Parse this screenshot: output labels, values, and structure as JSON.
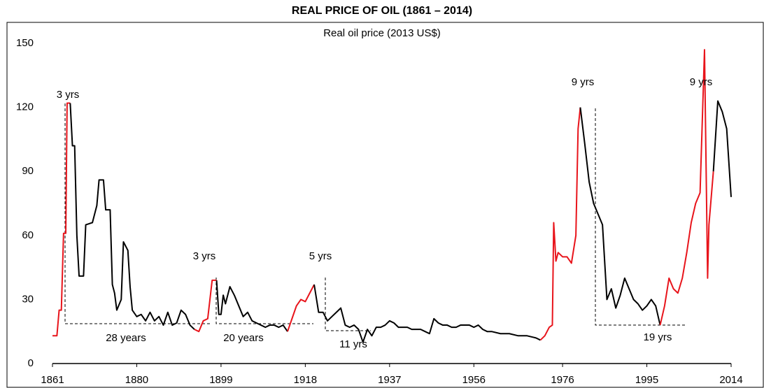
{
  "chart_data": {
    "type": "line",
    "title": "REAL PRICE OF OIL (1861 – 2014)",
    "subtitle": "Real oil price (2013 US$)",
    "xlim": [
      1861,
      2014
    ],
    "xticks": [
      1861,
      1880,
      1899,
      1918,
      1937,
      1956,
      1976,
      1995,
      2014
    ],
    "ylim": [
      0,
      150
    ],
    "yticks": [
      0,
      30,
      60,
      90,
      120,
      150
    ],
    "annotations": [
      "3 yrs",
      "28 years",
      "3 yrs",
      "20 years",
      "5 yrs",
      "11 yrs",
      "9 yrs",
      "19 yrs",
      "9 yrs"
    ],
    "series": [
      {
        "color": "#e8141b",
        "x": [
          1861,
          1862,
          1862.5,
          1863,
          1863.5,
          1864,
          1864.3,
          1865
        ],
        "values": [
          13,
          13,
          25,
          25,
          61,
          61,
          122,
          122
        ]
      },
      {
        "color": "#000000",
        "x": [
          1865,
          1865.5,
          1866,
          1866.5,
          1867,
          1868,
          1868.5,
          1870,
          1871,
          1871.5,
          1872.5,
          1873,
          1874,
          1874.5,
          1875,
          1875.5,
          1876.5,
          1877,
          1878,
          1878.5,
          1879,
          1880,
          1881,
          1882,
          1883,
          1884,
          1885,
          1886,
          1887,
          1888,
          1889,
          1890,
          1891,
          1892,
          1893
        ],
        "values": [
          122,
          102,
          102,
          60,
          41,
          41,
          65,
          66,
          74,
          86,
          86,
          72,
          72,
          37,
          33,
          25,
          30,
          57,
          53,
          36,
          25,
          22,
          23,
          20,
          24,
          20,
          22,
          18,
          24,
          18,
          19,
          25,
          23,
          18,
          16
        ]
      },
      {
        "color": "#e8141b",
        "x": [
          1893,
          1894,
          1895,
          1896,
          1897,
          1898
        ],
        "values": [
          16,
          15,
          20,
          21,
          39,
          39
        ]
      },
      {
        "color": "#000000",
        "x": [
          1898,
          1898.5,
          1899,
          1899.5,
          1900,
          1901,
          1902,
          1903,
          1904,
          1905,
          1906,
          1907,
          1908,
          1909,
          1910,
          1911,
          1912,
          1913,
          1914
        ],
        "values": [
          39,
          23,
          23,
          32,
          28,
          36,
          32,
          27,
          22,
          24,
          20,
          19,
          18,
          17,
          18,
          18,
          17,
          18,
          15
        ]
      },
      {
        "color": "#e8141b",
        "x": [
          1914,
          1915,
          1916,
          1917,
          1918,
          1919,
          1920
        ],
        "values": [
          15,
          21,
          27,
          30,
          29,
          33,
          37
        ]
      },
      {
        "color": "#000000",
        "x": [
          1920,
          1921,
          1922,
          1923,
          1924,
          1925,
          1926,
          1927,
          1928,
          1929,
          1930,
          1931,
          1932,
          1933,
          1934,
          1935,
          1936,
          1937,
          1938,
          1939,
          1940,
          1941,
          1942,
          1943,
          1944,
          1945,
          1946,
          1947,
          1948,
          1949,
          1950,
          1951,
          1952,
          1953,
          1954,
          1955,
          1956,
          1957,
          1958,
          1959,
          1960,
          1962,
          1964,
          1966,
          1968,
          1970,
          1971
        ],
        "values": [
          37,
          24,
          24,
          20,
          22,
          24,
          26,
          18,
          17,
          18,
          16,
          10,
          16,
          13,
          17,
          17,
          18,
          20,
          19,
          17,
          17,
          17,
          16,
          16,
          16,
          15,
          14,
          21,
          19,
          18,
          18,
          17,
          17,
          18,
          18,
          18,
          17,
          18,
          16,
          15,
          15,
          14,
          14,
          13,
          13,
          12,
          11
        ]
      },
      {
        "color": "#e8141b",
        "x": [
          1971,
          1972,
          1973,
          1973.7,
          1974,
          1974.5,
          1975,
          1976,
          1977,
          1978,
          1979,
          1979.5,
          1980
        ],
        "values": [
          11,
          13,
          17,
          18,
          66,
          48,
          52,
          50,
          50,
          47,
          60,
          110,
          120
        ]
      },
      {
        "color": "#000000",
        "x": [
          1980,
          1981,
          1982,
          1983,
          1984,
          1985,
          1986,
          1987,
          1988,
          1989,
          1990,
          1991,
          1992,
          1993,
          1994,
          1995,
          1996,
          1997,
          1998
        ],
        "values": [
          120,
          103,
          85,
          75,
          70,
          65,
          30,
          35,
          26,
          32,
          40,
          35,
          30,
          28,
          25,
          27,
          30,
          27,
          18
        ]
      },
      {
        "color": "#e8141b",
        "x": [
          1998,
          1999,
          2000,
          2001,
          2002,
          2003,
          2004,
          2005,
          2006,
          2007,
          2008,
          2008.7,
          2009,
          2010
        ],
        "values": [
          18,
          27,
          40,
          35,
          33,
          40,
          52,
          66,
          75,
          80,
          147,
          40,
          65,
          90
        ]
      },
      {
        "color": "#000000",
        "x": [
          2010,
          2011,
          2012,
          2013,
          2014
        ],
        "values": [
          90,
          123,
          118,
          110,
          78
        ]
      }
    ]
  }
}
